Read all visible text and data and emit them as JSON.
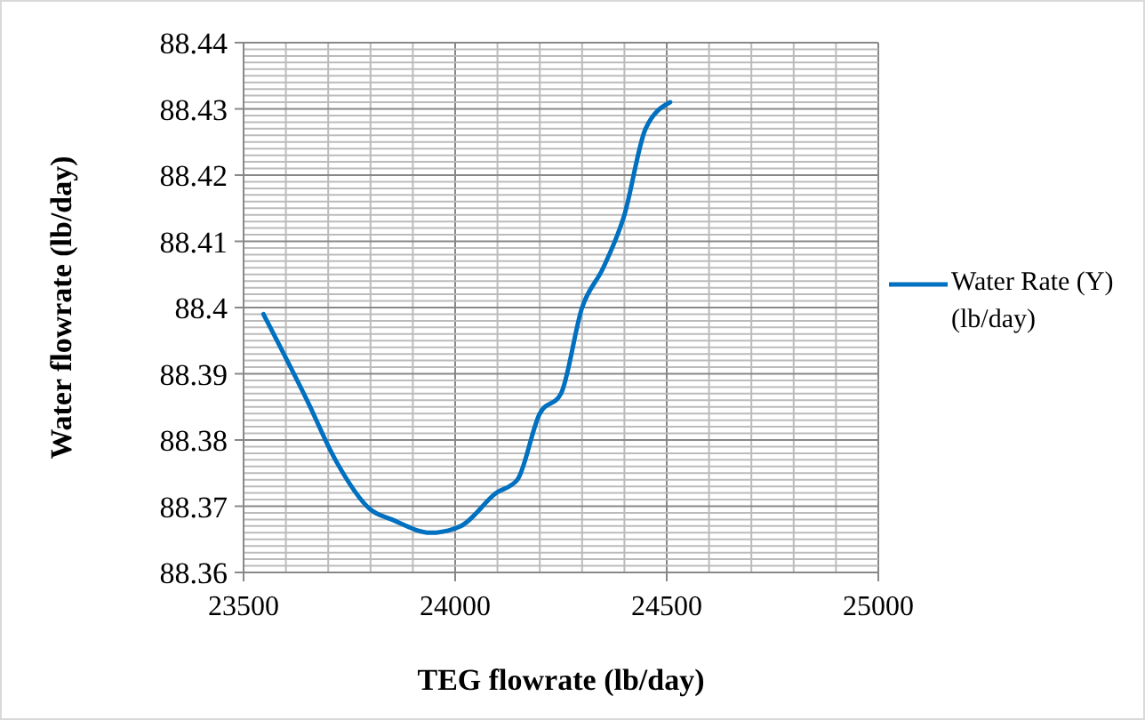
{
  "chart_data": {
    "type": "line",
    "xlabel": "TEG flowrate (lb/day)",
    "ylabel": "Water flowrate (lb/day)",
    "x": [
      23547,
      23650,
      23717,
      23800,
      23850,
      23942,
      24013,
      24097,
      24147,
      24200,
      24250,
      24300,
      24350,
      24400,
      24450,
      24508
    ],
    "series": [
      {
        "name": "Water Rate (Y) (lb/day)",
        "color": "#0070c0",
        "values": [
          88.399,
          88.386,
          88.377,
          88.3695,
          88.368,
          88.366,
          88.367,
          88.372,
          88.374,
          88.384,
          88.387,
          88.4,
          88.406,
          88.414,
          88.427,
          88.431
        ]
      }
    ],
    "xlim": [
      23500,
      25000
    ],
    "xticks": [
      23500,
      {
        "value": 23600,
        "label": null
      },
      {
        "value": 23700,
        "label": null
      },
      {
        "value": 23800,
        "label": null
      },
      {
        "value": 23900,
        "label": null
      },
      24000,
      {
        "value": 24100,
        "label": null
      },
      {
        "value": 24200,
        "label": null
      },
      {
        "value": 24300,
        "label": null
      },
      {
        "value": 24400,
        "label": null
      },
      24500,
      {
        "value": 24600,
        "label": null
      },
      {
        "value": 24700,
        "label": null
      },
      {
        "value": 24800,
        "label": null
      },
      {
        "value": 24900,
        "label": null
      },
      25000
    ],
    "ylim": [
      88.36,
      88.44
    ],
    "yticks": [
      88.36,
      {
        "value": 88.361,
        "label": null
      },
      {
        "value": 88.362,
        "label": null
      },
      {
        "value": 88.363,
        "label": null
      },
      {
        "value": 88.364,
        "label": null
      },
      {
        "value": 88.365,
        "label": null
      },
      {
        "value": 88.366,
        "label": null
      },
      {
        "value": 88.367,
        "label": null
      },
      {
        "value": 88.368,
        "label": null
      },
      {
        "value": 88.369,
        "label": null
      },
      88.37,
      {
        "value": 88.371,
        "label": null
      },
      {
        "value": 88.372,
        "label": null
      },
      {
        "value": 88.373,
        "label": null
      },
      {
        "value": 88.374,
        "label": null
      },
      {
        "value": 88.375,
        "label": null
      },
      {
        "value": 88.376,
        "label": null
      },
      {
        "value": 88.377,
        "label": null
      },
      {
        "value": 88.378,
        "label": null
      },
      {
        "value": 88.379,
        "label": null
      },
      88.38,
      {
        "value": 88.381,
        "label": null
      },
      {
        "value": 88.382,
        "label": null
      },
      {
        "value": 88.383,
        "label": null
      },
      {
        "value": 88.384,
        "label": null
      },
      {
        "value": 88.385,
        "label": null
      },
      {
        "value": 88.386,
        "label": null
      },
      {
        "value": 88.387,
        "label": null
      },
      {
        "value": 88.388,
        "label": null
      },
      {
        "value": 88.389,
        "label": null
      },
      88.39,
      {
        "value": 88.391,
        "label": null
      },
      {
        "value": 88.392,
        "label": null
      },
      {
        "value": 88.393,
        "label": null
      },
      {
        "value": 88.394,
        "label": null
      },
      {
        "value": 88.395,
        "label": null
      },
      {
        "value": 88.396,
        "label": null
      },
      {
        "value": 88.397,
        "label": null
      },
      {
        "value": 88.398,
        "label": null
      },
      {
        "value": 88.399,
        "label": null
      },
      88.4,
      {
        "value": 88.401,
        "label": null
      },
      {
        "value": 88.402,
        "label": null
      },
      {
        "value": 88.403,
        "label": null
      },
      {
        "value": 88.404,
        "label": null
      },
      {
        "value": 88.405,
        "label": null
      },
      {
        "value": 88.406,
        "label": null
      },
      {
        "value": 88.407,
        "label": null
      },
      {
        "value": 88.408,
        "label": null
      },
      {
        "value": 88.409,
        "label": null
      },
      88.41,
      {
        "value": 88.411,
        "label": null
      },
      {
        "value": 88.412,
        "label": null
      },
      {
        "value": 88.413,
        "label": null
      },
      {
        "value": 88.414,
        "label": null
      },
      {
        "value": 88.415,
        "label": null
      },
      {
        "value": 88.416,
        "label": null
      },
      {
        "value": 88.417,
        "label": null
      },
      {
        "value": 88.418,
        "label": null
      },
      {
        "value": 88.419,
        "label": null
      },
      88.42,
      {
        "value": 88.421,
        "label": null
      },
      {
        "value": 88.422,
        "label": null
      },
      {
        "value": 88.423,
        "label": null
      },
      {
        "value": 88.424,
        "label": null
      },
      {
        "value": 88.425,
        "label": null
      },
      {
        "value": 88.426,
        "label": null
      },
      {
        "value": 88.427,
        "label": null
      },
      {
        "value": 88.428,
        "label": null
      },
      {
        "value": 88.429,
        "label": null
      },
      88.43,
      {
        "value": 88.431,
        "label": null
      },
      {
        "value": 88.432,
        "label": null
      },
      {
        "value": 88.433,
        "label": null
      },
      {
        "value": 88.434,
        "label": null
      },
      {
        "value": 88.435,
        "label": null
      },
      {
        "value": 88.436,
        "label": null
      },
      {
        "value": 88.437,
        "label": null
      },
      {
        "value": 88.438,
        "label": null
      },
      {
        "value": 88.439,
        "label": null
      },
      88.44
    ],
    "grid": true,
    "legend": "right",
    "marker": "none",
    "line_style": "solid"
  }
}
